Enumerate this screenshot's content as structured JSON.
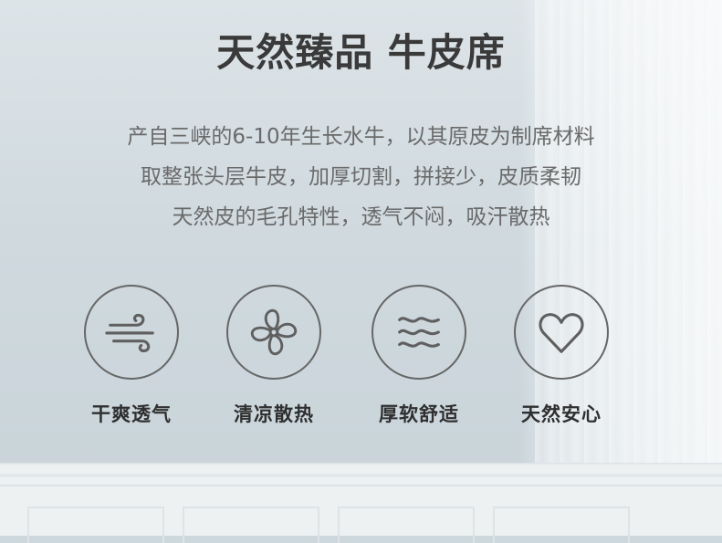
{
  "title": "天然臻品 牛皮席",
  "description": [
    "产自三峡的6-10年生长水牛，以其原皮为制席材料",
    "取整张头层牛皮，加厚切割，拼接少，皮质柔韧",
    "天然皮的毛孔特性，透气不闷，吸汗散热"
  ],
  "features": [
    {
      "label": "干爽透气",
      "icon": "wind-icon"
    },
    {
      "label": "清凉散热",
      "icon": "fan-icon"
    },
    {
      "label": "厚软舒适",
      "icon": "waves-icon"
    },
    {
      "label": "天然安心",
      "icon": "heart-icon"
    }
  ],
  "colors": {
    "icon_stroke": "#5f5f5f",
    "title": "#3a3a3a",
    "text": "#6a6a6a"
  }
}
